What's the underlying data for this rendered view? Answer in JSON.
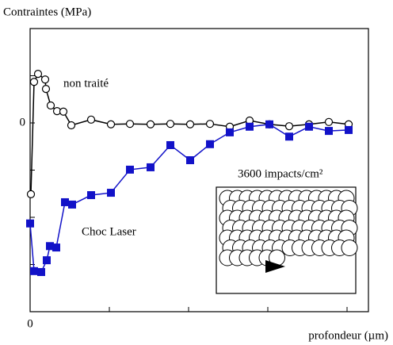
{
  "chart_data": {
    "type": "line",
    "ylabel": "Contraintes (MPa)",
    "xlabel": "profondeur (µm)",
    "xlim": [
      0,
      427
    ],
    "ylim": [
      -400,
      200
    ],
    "xticks": [
      0
    ],
    "yticks": [
      0
    ],
    "xticks_minor": [
      100,
      200,
      300,
      400
    ],
    "yticks_minor": [
      -400,
      -300,
      -200,
      -100,
      100,
      200
    ],
    "series": [
      {
        "name": "non traité",
        "color": "#000000",
        "marker": "circle",
        "x": [
          1,
          5,
          10,
          19,
          20,
          26,
          34,
          42,
          52,
          77,
          102,
          126,
          152,
          177,
          202,
          227,
          252,
          277,
          302,
          327,
          352,
          377,
          402
        ],
        "values": [
          -151,
          87,
          104,
          92,
          72,
          37,
          25,
          24,
          -5,
          7,
          -3,
          -2,
          -3,
          -2,
          -3,
          -2,
          -8,
          5,
          -3,
          -7,
          -3,
          2,
          -3
        ]
      },
      {
        "name": "Choc Laser",
        "color": "#1212c8",
        "marker": "square",
        "x": [
          0,
          5,
          14,
          21,
          25,
          33,
          44,
          53,
          77,
          102,
          126,
          152,
          177,
          202,
          227,
          252,
          277,
          302,
          327,
          352,
          377,
          402
        ],
        "values": [
          -213,
          -314,
          -316,
          -291,
          -261,
          -264,
          -168,
          -173,
          -153,
          -148,
          -99,
          -94,
          -47,
          -79,
          -45,
          -20,
          -8,
          -3,
          -29,
          -8,
          -17,
          -15
        ]
      }
    ],
    "annotation": "3600 impacts/cm²"
  }
}
